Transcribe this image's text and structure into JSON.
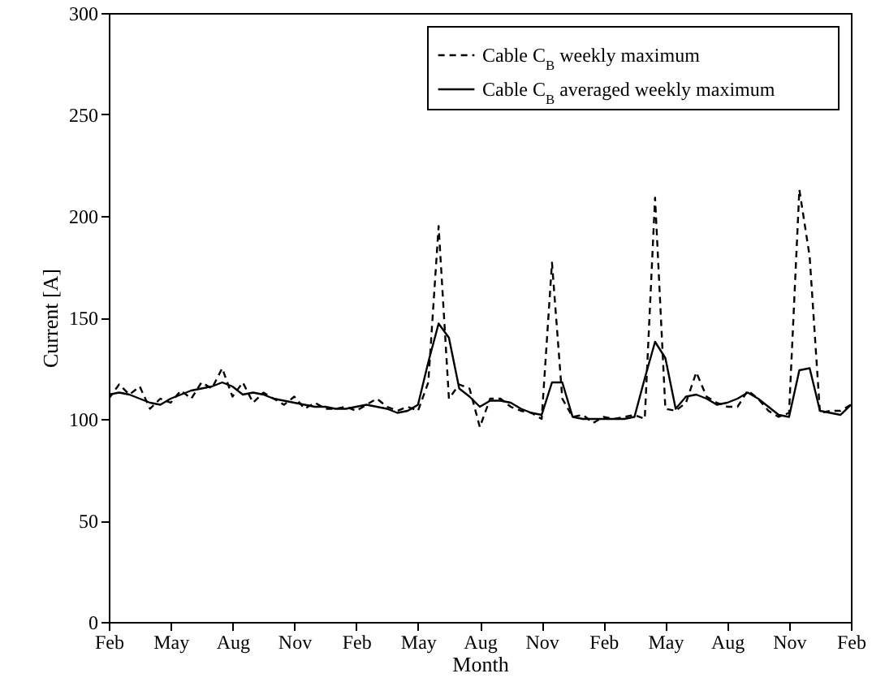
{
  "chart_data": {
    "type": "line",
    "xlabel": "Month",
    "ylabel": "Current [A]",
    "categories": [
      "Feb",
      null,
      null,
      null,
      null,
      null,
      "May",
      null,
      null,
      null,
      null,
      null,
      "Aug",
      null,
      null,
      null,
      null,
      null,
      "Nov",
      null,
      null,
      null,
      null,
      null,
      "Feb",
      null,
      null,
      null,
      null,
      null,
      "May",
      null,
      null,
      null,
      null,
      null,
      "Aug",
      null,
      null,
      null,
      null,
      null,
      "Nov",
      null,
      null,
      null,
      null,
      null,
      "Feb",
      null,
      null,
      null,
      null,
      null,
      "May",
      null,
      null,
      null,
      null,
      null,
      "Aug",
      null,
      null,
      null,
      null,
      null,
      "Nov",
      null,
      null,
      null,
      null,
      null,
      "Feb"
    ],
    "ylim": [
      0,
      300
    ],
    "yticks": [
      0,
      50,
      100,
      150,
      200,
      250,
      300
    ],
    "legend": "top right",
    "grid": false,
    "series": [
      {
        "name": "Cable C$_{B}$ weekly maximum",
        "color": "#000000",
        "line_style": "dashed",
        "values": [
          110,
          117,
          112,
          116,
          105,
          110,
          108,
          114,
          110,
          118,
          115,
          125,
          111,
          118,
          108,
          113,
          110,
          107,
          111,
          105,
          108,
          105,
          105,
          106,
          104,
          107,
          110,
          106,
          104,
          106,
          104,
          118,
          195,
          110,
          117,
          115,
          96,
          110,
          110,
          106,
          104,
          103,
          100,
          177,
          110,
          101,
          102,
          98,
          101,
          100,
          101,
          102,
          100,
          209,
          105,
          104,
          108,
          123,
          111,
          108,
          106,
          106,
          114,
          110,
          104,
          101,
          103,
          213,
          180,
          103,
          104,
          104,
          107
        ]
      },
      {
        "name": "Cable C$_{B}$ averaged weekly maximum",
        "color": "#000000",
        "line_style": "solid",
        "values": [
          112,
          113,
          112,
          110,
          108,
          107,
          110,
          112,
          114,
          115,
          116,
          118,
          116,
          112,
          113,
          112,
          110,
          109,
          108,
          107,
          106,
          106,
          105,
          105,
          106,
          107,
          106,
          105,
          103,
          104,
          107,
          128,
          147,
          140,
          115,
          111,
          106,
          109,
          109,
          108,
          105,
          103,
          102,
          118,
          118,
          101,
          100,
          100,
          100,
          100,
          100,
          101,
          120,
          138,
          130,
          105,
          111,
          112,
          110,
          107,
          108,
          110,
          113,
          110,
          106,
          102,
          101,
          124,
          125,
          104,
          103,
          102,
          107
        ]
      }
    ]
  }
}
